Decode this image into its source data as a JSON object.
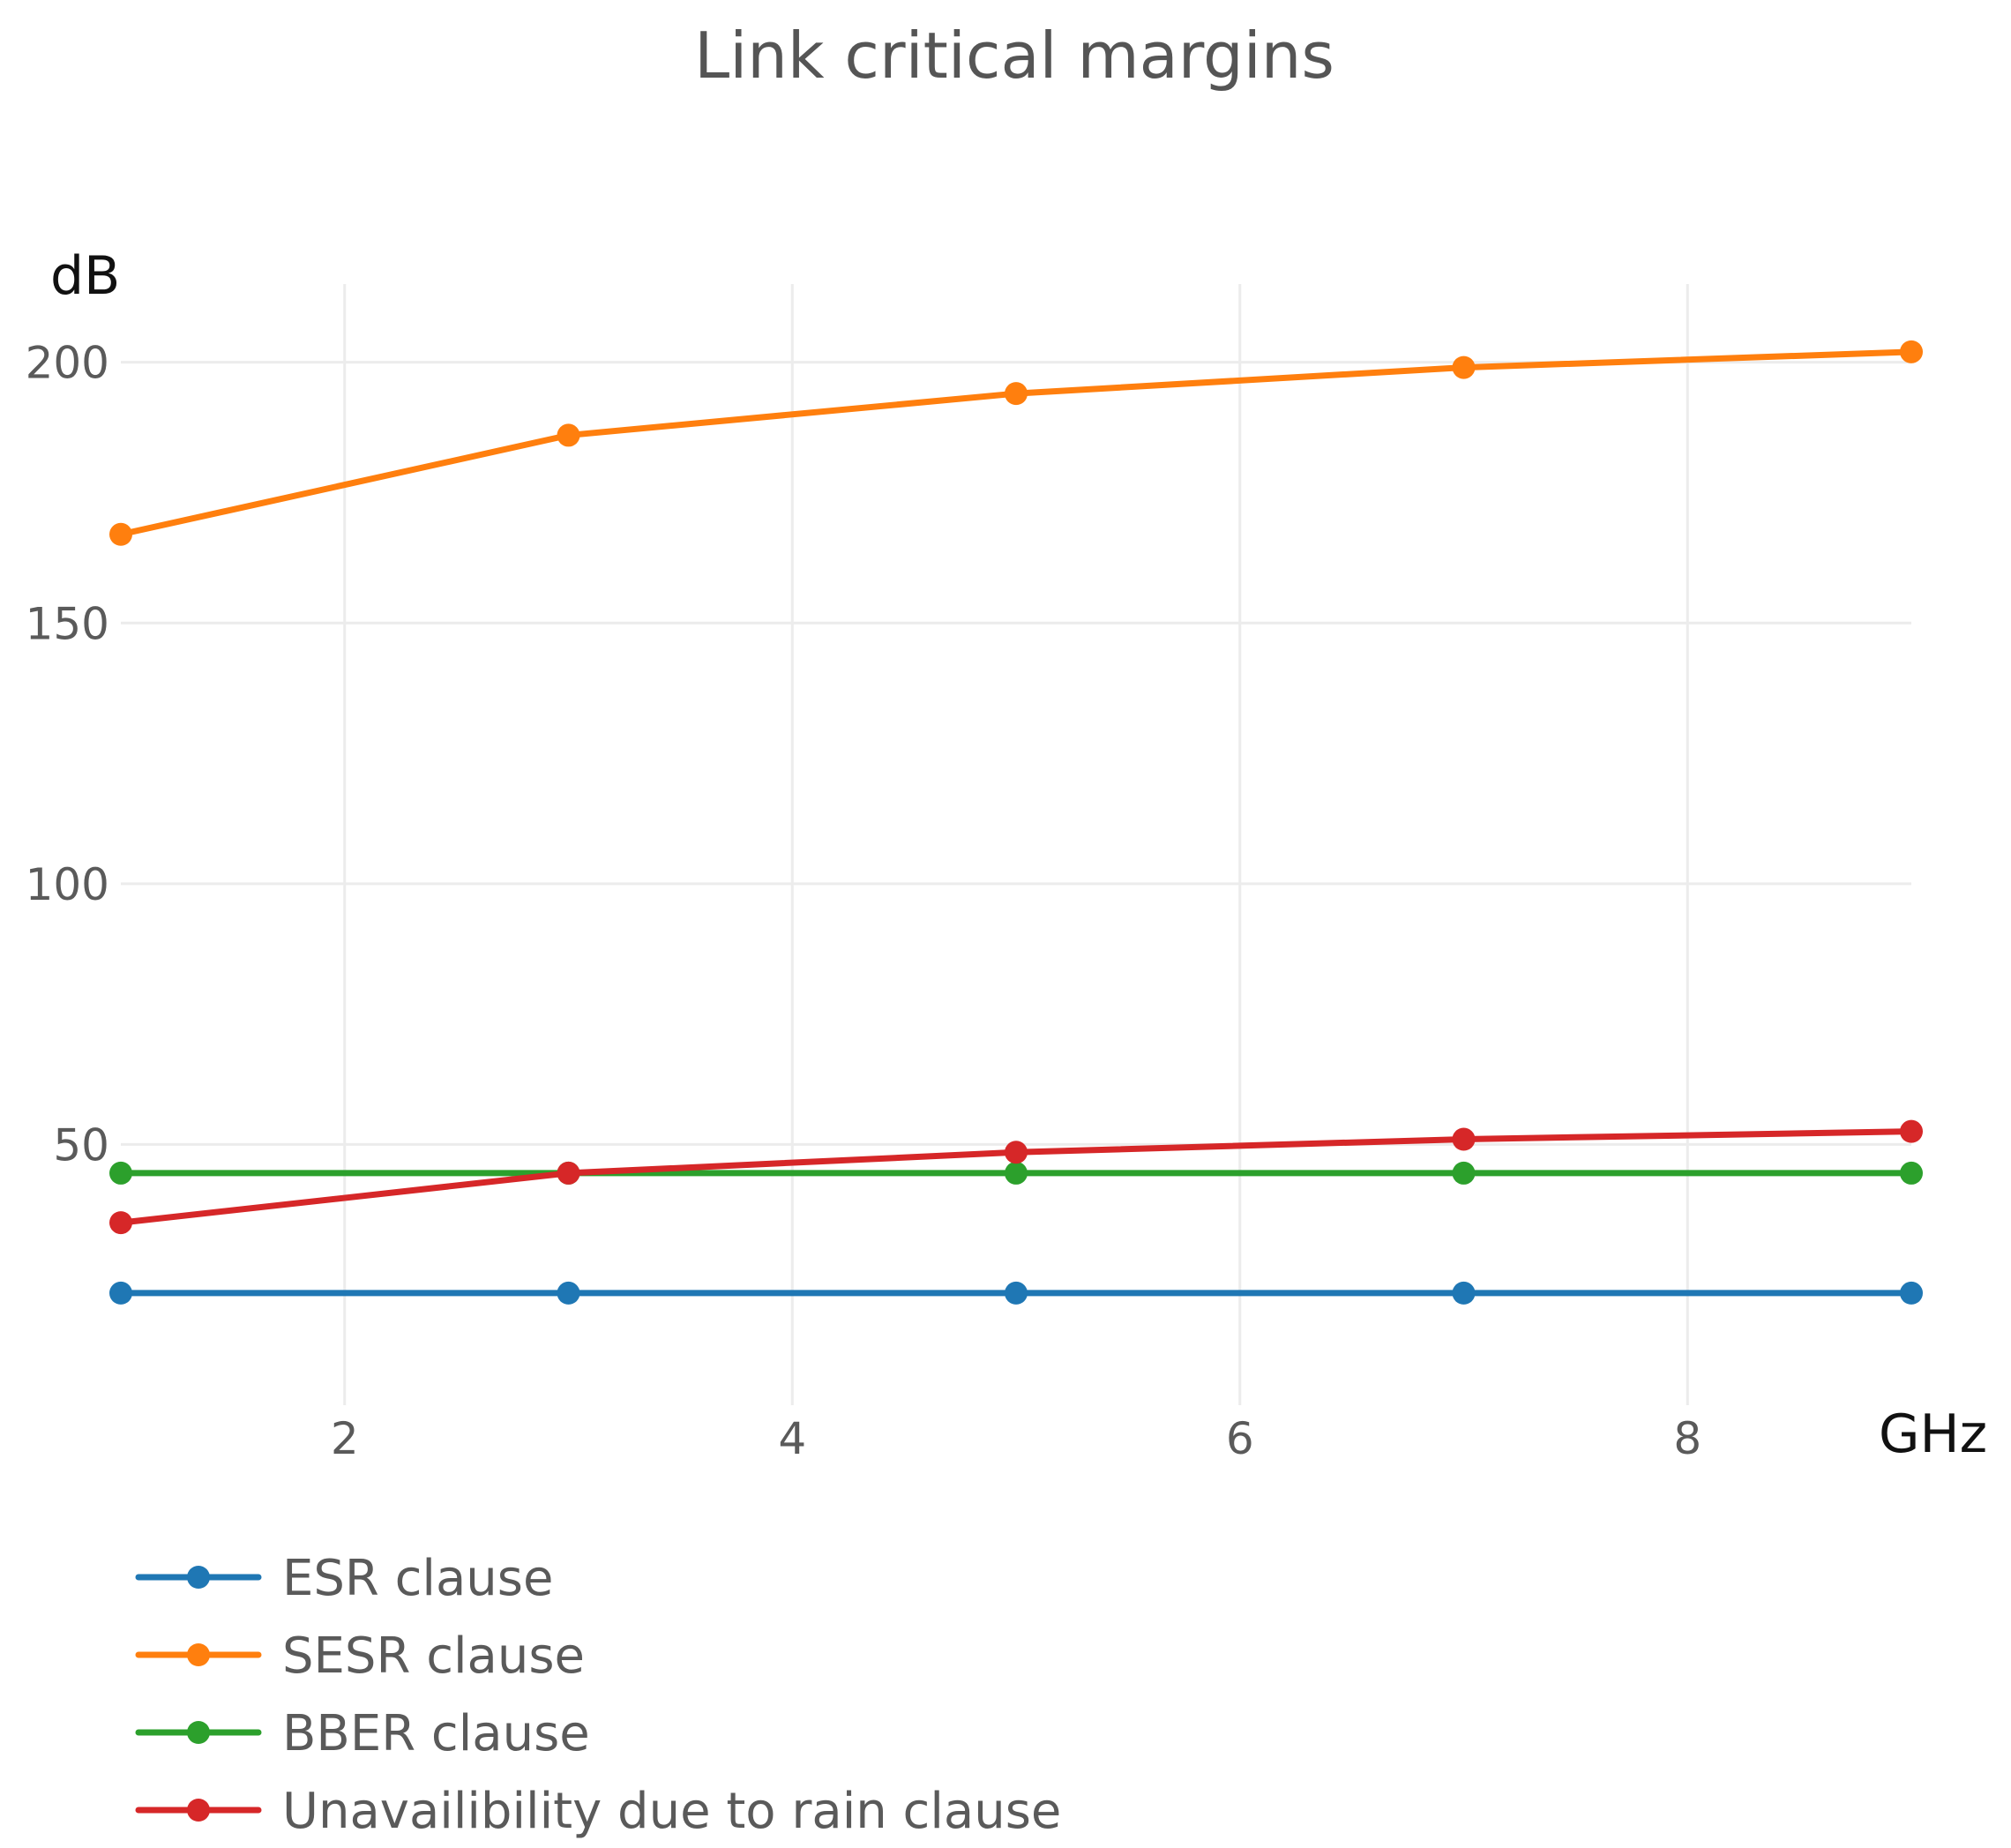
{
  "chart_data": {
    "type": "line",
    "title": "Link critical margins",
    "xlabel": "GHz",
    "ylabel": "dB",
    "xlim": [
      1,
      9
    ],
    "ylim": [
      0,
      215
    ],
    "x_ticks": [
      2,
      4,
      6,
      8
    ],
    "y_ticks": [
      50,
      100,
      150,
      200
    ],
    "grid": true,
    "legend_position": "bottom-left",
    "x": [
      1,
      3,
      5,
      7,
      9
    ],
    "series": [
      {
        "name": "ESR clause",
        "color": "#1f77b4",
        "values": [
          21.5,
          21.5,
          21.5,
          21.5,
          21.5
        ]
      },
      {
        "name": "SESR clause",
        "color": "#ff7f0e",
        "values": [
          167,
          186,
          194,
          199,
          202
        ]
      },
      {
        "name": "BBER clause",
        "color": "#2ca02c",
        "values": [
          44.5,
          44.5,
          44.5,
          44.5,
          44.5
        ]
      },
      {
        "name": "Unavailibility due to rain clause",
        "color": "#d62728",
        "values": [
          35,
          44.5,
          48.5,
          51,
          52.5
        ]
      }
    ]
  }
}
